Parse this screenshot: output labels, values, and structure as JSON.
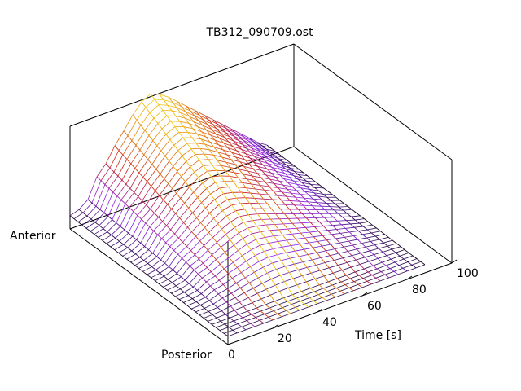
{
  "chart_data": {
    "type": "surface",
    "title": "TB312_090709.ost",
    "xlabel": "Time [s]",
    "x_ticks": [
      "0",
      "20",
      "40",
      "60",
      "80",
      "100"
    ],
    "xlim": [
      0,
      100
    ],
    "y_labels": {
      "near": "Posterior",
      "far": "Anterior"
    },
    "grid": false,
    "colormap": [
      "#000000",
      "#8a22ee",
      "#c81e1e",
      "#e8860c",
      "#f5e012"
    ],
    "surface": {
      "time_samples": [
        0,
        4,
        8,
        12,
        16,
        20,
        24,
        28,
        32,
        36,
        40,
        44,
        48,
        52,
        56,
        60,
        64,
        68,
        72,
        76,
        80,
        84,
        88
      ],
      "relative_height_peak": [
        0.05,
        0.08,
        0.15,
        0.35,
        0.45,
        0.6,
        0.72,
        0.85,
        0.95,
        1.0,
        0.96,
        0.9,
        0.82,
        0.74,
        0.66,
        0.58,
        0.5,
        0.42,
        0.34,
        0.26,
        0.18,
        0.1,
        0.04
      ]
    }
  }
}
